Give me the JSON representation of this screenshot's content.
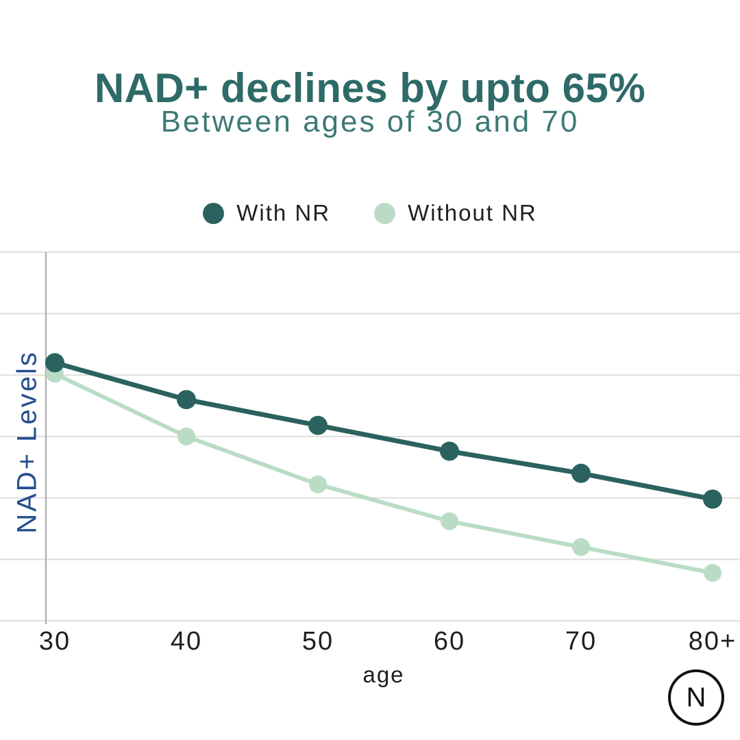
{
  "title": "NAD+ declines by upto 65%",
  "subtitle": "Between ages of 30 and 70",
  "logo": {
    "letter": "N"
  },
  "colors": {
    "title": "#2e6a68",
    "subtitle": "#3d7a76",
    "with_nr": "#2b625f",
    "without_nr": "#badcc6",
    "ylabel": "#234e8e",
    "tick_text": "#1f1f1f",
    "gridline": "#dedede",
    "axis_line": "#b3b3b3"
  },
  "chart_data": {
    "type": "line",
    "title": "NAD+ declines by upto 65%",
    "subtitle": "Between ages of 30 and 70",
    "categories": [
      "30",
      "40",
      "50",
      "60",
      "70",
      "80+"
    ],
    "series": [
      {
        "name": "With NR",
        "color": "#2b625f",
        "values": [
          70,
          60,
          53,
          46,
          40,
          33
        ]
      },
      {
        "name": "Without NR",
        "color": "#badcc6",
        "values": [
          67,
          50,
          37,
          27,
          20,
          13
        ]
      }
    ],
    "xlabel": "age",
    "ylabel": "NAD+ Levels",
    "ylim": [
      0,
      100
    ],
    "grid": "horizontal-only",
    "gridline_count": 7,
    "legend_position": "top",
    "y_tick_labels_shown": false
  }
}
